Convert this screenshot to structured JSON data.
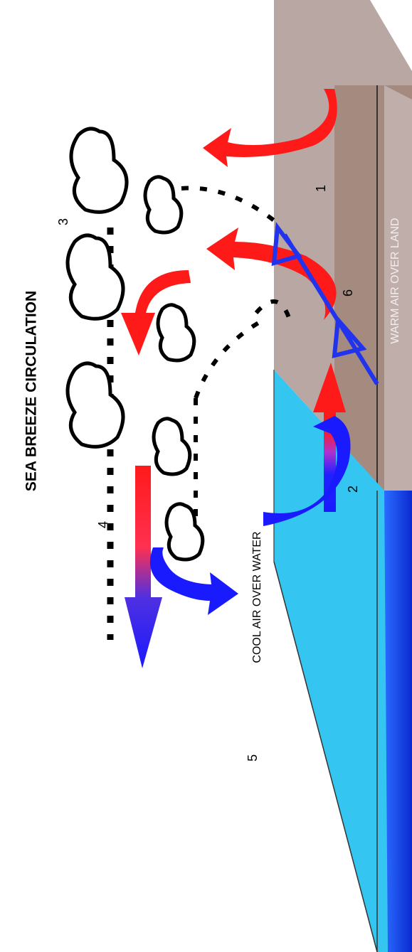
{
  "title": "SEA BREEZE CIRCULATION",
  "regions": {
    "water": "COOL  AIR OVER WATER",
    "land": "WARM AIR OVER LAND"
  },
  "markers": [
    "1",
    "2",
    "3",
    "4",
    "5",
    "6"
  ]
}
